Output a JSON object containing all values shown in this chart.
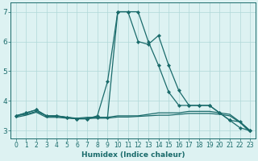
{
  "xlabel": "Humidex (Indice chaleur)",
  "bg_color": "#ddf2f2",
  "grid_color": "#b0d8d8",
  "line_color": "#1a6b6b",
  "xlim": [
    -0.5,
    23.5
  ],
  "ylim": [
    2.75,
    7.3
  ],
  "xticks": [
    0,
    1,
    2,
    3,
    4,
    5,
    6,
    7,
    8,
    9,
    10,
    11,
    12,
    13,
    14,
    15,
    16,
    17,
    18,
    19,
    20,
    21,
    22,
    23
  ],
  "yticks": [
    3,
    4,
    5,
    6,
    7
  ],
  "lines": [
    {
      "x": [
        0,
        1,
        2,
        3,
        4,
        5,
        6,
        7,
        8,
        9,
        10,
        11,
        12,
        13,
        14,
        15,
        16,
        17,
        18,
        19,
        20,
        21,
        22,
        23
      ],
      "y": [
        3.5,
        3.6,
        3.7,
        3.5,
        3.5,
        3.45,
        3.4,
        3.4,
        3.5,
        4.65,
        7.0,
        7.0,
        6.0,
        5.9,
        6.2,
        5.2,
        4.35,
        3.85,
        3.85,
        3.85,
        3.6,
        3.35,
        3.3,
        3.0
      ],
      "marker": true
    },
    {
      "x": [
        0,
        1,
        2,
        3,
        4,
        5,
        6,
        7,
        8,
        9,
        10,
        11,
        12,
        13,
        14,
        15,
        16,
        17,
        18,
        19,
        20,
        21,
        22,
        23
      ],
      "y": [
        3.5,
        3.6,
        3.7,
        3.5,
        3.5,
        3.45,
        3.4,
        3.4,
        3.45,
        3.45,
        7.0,
        7.0,
        7.0,
        6.0,
        5.2,
        4.3,
        3.85,
        3.85,
        3.85,
        3.85,
        3.6,
        3.35,
        3.1,
        3.0
      ],
      "marker": true
    },
    {
      "x": [
        0,
        1,
        2,
        3,
        4,
        5,
        6,
        7,
        8,
        9,
        10,
        11,
        12,
        13,
        14,
        15,
        16,
        17,
        18,
        19,
        20,
        21,
        22,
        23
      ],
      "y": [
        3.5,
        3.55,
        3.65,
        3.5,
        3.48,
        3.45,
        3.42,
        3.45,
        3.45,
        3.45,
        3.5,
        3.5,
        3.5,
        3.55,
        3.6,
        3.6,
        3.6,
        3.65,
        3.65,
        3.65,
        3.6,
        3.55,
        3.3,
        3.0
      ],
      "marker": false
    },
    {
      "x": [
        0,
        1,
        2,
        3,
        4,
        5,
        6,
        7,
        8,
        9,
        10,
        11,
        12,
        13,
        14,
        15,
        16,
        17,
        18,
        19,
        20,
        21,
        22,
        23
      ],
      "y": [
        3.45,
        3.52,
        3.62,
        3.45,
        3.45,
        3.42,
        3.4,
        3.42,
        3.42,
        3.42,
        3.46,
        3.46,
        3.48,
        3.5,
        3.52,
        3.52,
        3.55,
        3.58,
        3.58,
        3.58,
        3.55,
        3.5,
        3.28,
        2.95
      ],
      "marker": false
    }
  ]
}
